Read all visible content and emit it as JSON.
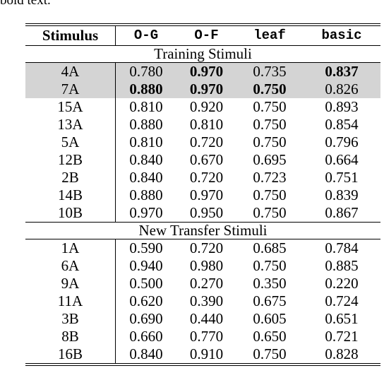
{
  "cut_text": "bold text.",
  "headers": [
    "Stimulus",
    "O-G",
    "O-F",
    "leaf",
    "basic"
  ],
  "sections": [
    {
      "title": "Training Stimuli",
      "rows": [
        {
          "cells": [
            "4A",
            "0.780",
            "0.970",
            "0.735",
            "0.837"
          ],
          "bold": [
            2,
            4
          ],
          "highlight": true
        },
        {
          "cells": [
            "7A",
            "0.880",
            "0.970",
            "0.750",
            "0.826"
          ],
          "bold": [
            1,
            2,
            3
          ],
          "highlight": true
        },
        {
          "cells": [
            "15A",
            "0.810",
            "0.920",
            "0.750",
            "0.893"
          ],
          "bold": [],
          "highlight": false
        },
        {
          "cells": [
            "13A",
            "0.880",
            "0.810",
            "0.750",
            "0.854"
          ],
          "bold": [],
          "highlight": false
        },
        {
          "cells": [
            "5A",
            "0.810",
            "0.720",
            "0.750",
            "0.796"
          ],
          "bold": [],
          "highlight": false
        },
        {
          "cells": [
            "12B",
            "0.840",
            "0.670",
            "0.695",
            "0.664"
          ],
          "bold": [],
          "highlight": false
        },
        {
          "cells": [
            "2B",
            "0.840",
            "0.720",
            "0.723",
            "0.751"
          ],
          "bold": [],
          "highlight": false
        },
        {
          "cells": [
            "14B",
            "0.880",
            "0.970",
            "0.750",
            "0.839"
          ],
          "bold": [],
          "highlight": false
        },
        {
          "cells": [
            "10B",
            "0.970",
            "0.950",
            "0.750",
            "0.867"
          ],
          "bold": [],
          "highlight": false
        }
      ]
    },
    {
      "title": "New Transfer Stimuli",
      "rows": [
        {
          "cells": [
            "1A",
            "0.590",
            "0.720",
            "0.685",
            "0.784"
          ],
          "bold": [],
          "highlight": false
        },
        {
          "cells": [
            "6A",
            "0.940",
            "0.980",
            "0.750",
            "0.885"
          ],
          "bold": [],
          "highlight": false
        },
        {
          "cells": [
            "9A",
            "0.500",
            "0.270",
            "0.350",
            "0.220"
          ],
          "bold": [],
          "highlight": false
        },
        {
          "cells": [
            "11A",
            "0.620",
            "0.390",
            "0.675",
            "0.724"
          ],
          "bold": [],
          "highlight": false
        },
        {
          "cells": [
            "3B",
            "0.690",
            "0.440",
            "0.605",
            "0.651"
          ],
          "bold": [],
          "highlight": false
        },
        {
          "cells": [
            "8B",
            "0.660",
            "0.770",
            "0.650",
            "0.721"
          ],
          "bold": [],
          "highlight": false
        },
        {
          "cells": [
            "16B",
            "0.840",
            "0.910",
            "0.750",
            "0.828"
          ],
          "bold": [],
          "highlight": false
        }
      ]
    }
  ],
  "colors": {
    "highlight_row": "#d4d4d4"
  }
}
